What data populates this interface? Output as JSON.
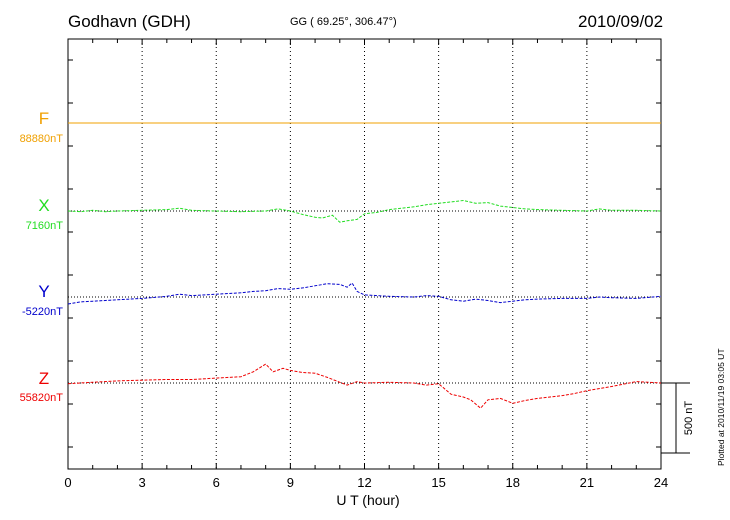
{
  "header": {
    "station": "Godhavn (GDH)",
    "coords": "GG ( 69.25°, 306.47°)",
    "date": "2010/09/02",
    "plotted": "Plotted at 2010/11/19 03:05 UT"
  },
  "chart_data": {
    "type": "line",
    "title": "Godhavn (GDH)",
    "xlabel": "U T (hour)",
    "xlim": [
      0,
      24
    ],
    "xticks": [
      "0",
      "3",
      "6",
      "9",
      "12",
      "15",
      "18",
      "21",
      "24"
    ],
    "grid": "vertical dotted every 3 hours",
    "scale_bar": {
      "label": "500 nT",
      "value_nT": 500
    },
    "series": [
      {
        "name": "F",
        "baseline_label": "88880nT",
        "baseline": 88880,
        "color": "#f0a000",
        "x": [
          0,
          24
        ],
        "offset": [
          0,
          0
        ]
      },
      {
        "name": "X",
        "baseline_label": "7160nT",
        "baseline": 7160,
        "color": "#22dd22",
        "x": [
          0,
          0.5,
          1,
          1.5,
          2,
          3,
          4,
          4.5,
          5,
          6,
          7,
          8,
          8.5,
          9,
          9.5,
          10,
          10.3,
          10.7,
          11,
          11.3,
          11.7,
          12,
          12.5,
          13,
          13.5,
          14,
          14.5,
          15,
          15.5,
          16,
          16.5,
          17,
          17.5,
          18,
          18.5,
          19,
          20,
          21,
          21.5,
          22,
          23,
          24
        ],
        "offset": [
          0,
          -5,
          5,
          -5,
          0,
          5,
          10,
          20,
          5,
          0,
          -5,
          0,
          15,
          0,
          -25,
          -45,
          -50,
          -30,
          -80,
          -70,
          -60,
          -20,
          -10,
          10,
          20,
          30,
          45,
          55,
          65,
          75,
          55,
          60,
          35,
          25,
          15,
          10,
          5,
          0,
          15,
          5,
          5,
          0
        ]
      },
      {
        "name": "Y",
        "baseline_label": "-5220nT",
        "baseline": -5220,
        "color": "#0000cc",
        "x": [
          0,
          0.5,
          1,
          2,
          3,
          4,
          4.5,
          5,
          6,
          7,
          7.5,
          8,
          8.5,
          9,
          9.5,
          10,
          10.5,
          11,
          11.3,
          11.5,
          11.7,
          12,
          13,
          14,
          14.5,
          15,
          15.5,
          16,
          16.5,
          17,
          17.5,
          18,
          18.5,
          19,
          20,
          21,
          21.5,
          22,
          23,
          24
        ],
        "offset": [
          -50,
          -35,
          -30,
          -20,
          -10,
          5,
          20,
          10,
          20,
          30,
          40,
          45,
          60,
          55,
          65,
          80,
          95,
          90,
          70,
          100,
          40,
          15,
          5,
          0,
          10,
          5,
          -20,
          -30,
          -15,
          -25,
          -40,
          -30,
          -20,
          -15,
          -10,
          -10,
          0,
          -5,
          -10,
          5
        ]
      },
      {
        "name": "Z",
        "baseline_label": "55820nT",
        "baseline": 55820,
        "color": "#ee0000",
        "x": [
          0,
          1,
          2,
          3,
          4,
          5,
          6,
          7,
          7.5,
          8,
          8.3,
          8.7,
          9,
          9.5,
          10,
          10.5,
          11,
          11.3,
          11.7,
          12,
          13,
          14,
          14.5,
          15,
          15.5,
          16,
          16.3,
          16.7,
          17,
          17.5,
          18,
          18.5,
          19,
          20,
          20.5,
          21,
          22,
          23,
          24
        ],
        "offset": [
          -5,
          5,
          15,
          20,
          25,
          25,
          35,
          45,
          80,
          135,
          80,
          105,
          90,
          75,
          70,
          40,
          5,
          -15,
          10,
          0,
          5,
          0,
          -15,
          -5,
          -80,
          -100,
          -120,
          -180,
          -120,
          -110,
          -145,
          -125,
          -110,
          -90,
          -75,
          -55,
          -25,
          10,
          0
        ]
      }
    ]
  }
}
